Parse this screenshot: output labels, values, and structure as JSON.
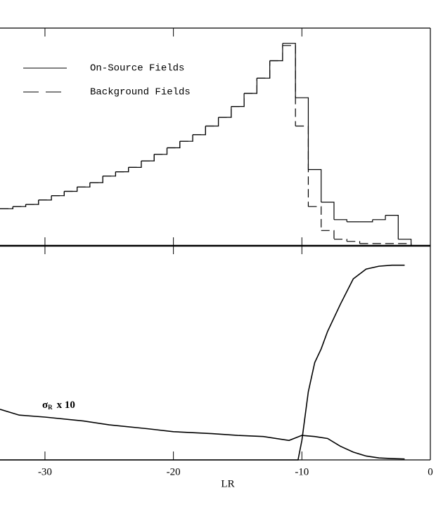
{
  "chart_data": [
    {
      "type": "histogram",
      "panel": "top",
      "bins": [
        -33.5,
        -32.5,
        -31.5,
        -30.5,
        -29.5,
        -28.5,
        -27.5,
        -26.5,
        -25.5,
        -24.5,
        -23.5,
        -22.5,
        -21.5,
        -20.5,
        -19.5,
        -18.5,
        -17.5,
        -16.5,
        -15.5,
        -14.5,
        -13.5,
        -12.5,
        -11.5,
        -10.5,
        -9.5,
        -8.5,
        -7.5,
        -6.5,
        -5.5,
        -4.5,
        -3.5,
        -2.5,
        -1.5
      ],
      "series": [
        {
          "name": "On-Source Fields",
          "color": "#000",
          "dash": false,
          "values": [
            17,
            18,
            19,
            21,
            23,
            25,
            27,
            29,
            32,
            34,
            36,
            39,
            42,
            45,
            48,
            51,
            55,
            59,
            64,
            70,
            77,
            85,
            93,
            68,
            35,
            20,
            12,
            11,
            11,
            12,
            14,
            3
          ]
        },
        {
          "name": "Background Fields",
          "color": "#000",
          "dash": true,
          "values": [
            17,
            18,
            19,
            21,
            23,
            25,
            27,
            29,
            32,
            34,
            36,
            39,
            42,
            45,
            48,
            51,
            55,
            59,
            64,
            70,
            77,
            85,
            92,
            55,
            18,
            7,
            3,
            2,
            1,
            1,
            1,
            1
          ]
        }
      ],
      "xlim": [
        -33.5,
        0
      ],
      "ylim": [
        0,
        100
      ],
      "xticks": [
        -30,
        -20,
        -10,
        0
      ]
    },
    {
      "type": "line",
      "panel": "bottom",
      "xlabel": "LR",
      "annotation": {
        "symbol": "σ",
        "subscript": "R",
        "text": "x 10"
      },
      "series": [
        {
          "color": "#000",
          "x": [
            -33.5,
            -10.3,
            -10,
            -9.5,
            -9,
            -8.5,
            -8,
            -7,
            -6,
            -5,
            -4,
            -3,
            -2
          ],
          "values": [
            0,
            0,
            0.1,
            0.35,
            0.5,
            0.57,
            0.66,
            0.8,
            0.93,
            0.98,
            0.995,
            1.0,
            1.0
          ]
        },
        {
          "color": "#000",
          "x": [
            -33.5,
            -32,
            -30,
            -27,
            -25,
            -22,
            -20,
            -17,
            -15,
            -13,
            -11,
            -10,
            -9,
            -8,
            -7,
            -6,
            -5,
            -4,
            -3,
            -2
          ],
          "values": [
            0.26,
            0.23,
            0.22,
            0.2,
            0.18,
            0.16,
            0.145,
            0.135,
            0.126,
            0.12,
            0.1,
            0.126,
            0.12,
            0.11,
            0.07,
            0.04,
            0.02,
            0.01,
            0.007,
            0.005
          ]
        }
      ],
      "xlim": [
        -33.5,
        0
      ],
      "ylim": [
        0,
        1.1
      ],
      "xticks": [
        -30,
        -20,
        -10,
        0
      ]
    }
  ]
}
